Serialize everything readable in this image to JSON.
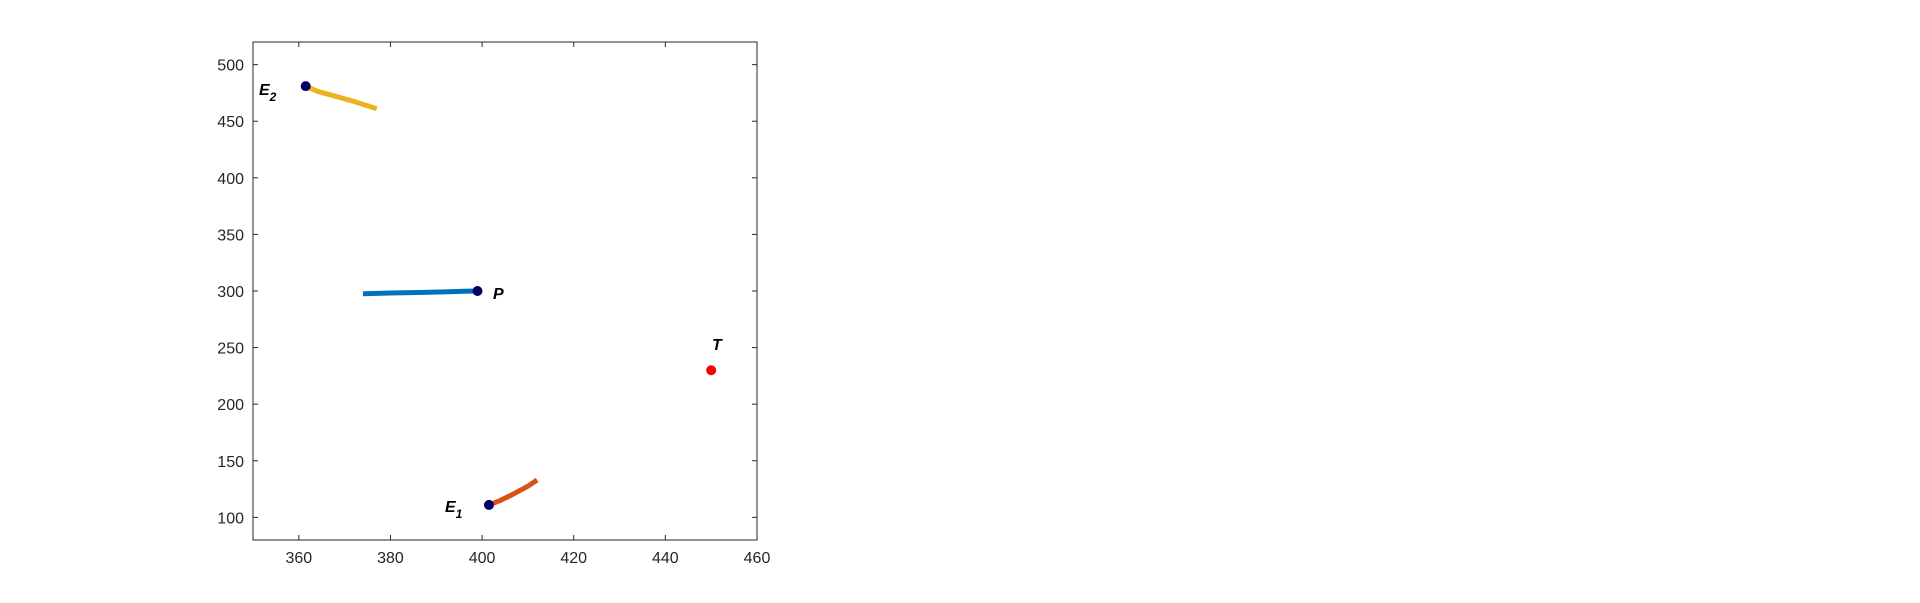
{
  "chart_data": {
    "type": "line",
    "title": "",
    "xlabel": "",
    "ylabel": "",
    "xlim": [
      350,
      460
    ],
    "ylim": [
      80,
      520
    ],
    "xticks": [
      360,
      380,
      400,
      420,
      440,
      460
    ],
    "yticks": [
      100,
      150,
      200,
      250,
      300,
      350,
      400,
      450,
      500
    ],
    "grid": false,
    "legend": "none",
    "series": [
      {
        "color": "#0072BD",
        "points": [
          [
            374,
            297.5
          ],
          [
            380,
            298.2
          ],
          [
            386,
            298.7
          ],
          [
            392,
            299.2
          ],
          [
            396,
            299.7
          ],
          [
            399,
            300
          ]
        ]
      },
      {
        "color": "#D95319",
        "points": [
          [
            401.5,
            111
          ],
          [
            404,
            115
          ],
          [
            407,
            121
          ],
          [
            410,
            127.5
          ],
          [
            412,
            133
          ]
        ]
      },
      {
        "color": "#EDB120",
        "points": [
          [
            361.5,
            481
          ],
          [
            364,
            476.5
          ],
          [
            368,
            472
          ],
          [
            372,
            467.5
          ],
          [
            377,
            461
          ]
        ]
      }
    ],
    "markers": [
      {
        "name": "P",
        "x": 399,
        "y": 300,
        "color": "#000066"
      },
      {
        "name": "E1",
        "x": 401.5,
        "y": 111,
        "color": "#000066"
      },
      {
        "name": "E2",
        "x": 361.5,
        "y": 481,
        "color": "#000066"
      },
      {
        "name": "T",
        "x": 450,
        "y": 230,
        "color": "#FF0000"
      }
    ],
    "labels": {
      "P": {
        "main": "P",
        "sub": ""
      },
      "E1": {
        "main": "E",
        "sub": "1"
      },
      "E2": {
        "main": "E",
        "sub": "2"
      },
      "T": {
        "main": "T",
        "sub": ""
      }
    }
  }
}
